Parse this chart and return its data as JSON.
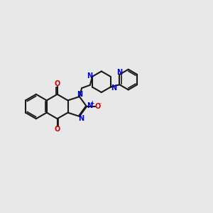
{
  "bg_color": "#e8e8e8",
  "bond_color": "#1a1a1a",
  "bond_lw": 1.5,
  "n_color": "#0000cc",
  "o_color": "#cc0000",
  "fs": 6.5,
  "fig_w": 3.0,
  "fig_h": 3.0,
  "dpi": 100,
  "xlim": [
    -1.0,
    11.5
  ],
  "ylim": [
    -1.0,
    10.0
  ]
}
